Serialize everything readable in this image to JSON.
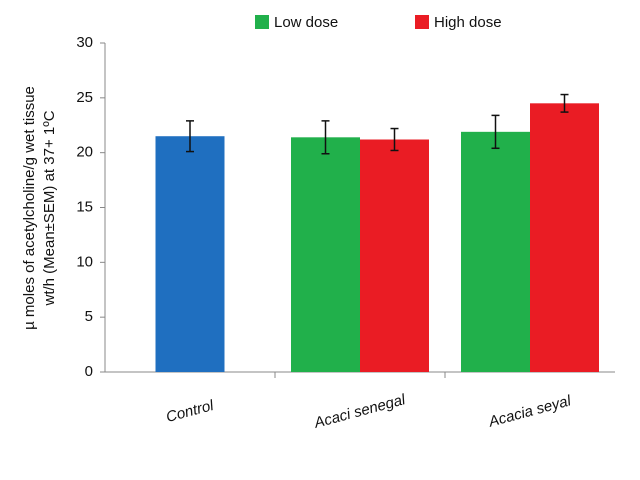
{
  "chart_data": {
    "type": "bar",
    "y_label_lines": [
      "µ moles of acetylcholine/g wet tissue",
      "wt/h (Mean±SEM) at 37+ 1ºC"
    ],
    "categories": [
      "Control",
      "Acaci senegal",
      "Acacia seyal"
    ],
    "series": [
      {
        "color": "#1f6fc0",
        "values": [
          21.5,
          null,
          null
        ],
        "errors": [
          1.4,
          null,
          null
        ]
      },
      {
        "name": "Low dose",
        "color": "#21b04b",
        "values": [
          null,
          21.4,
          21.9
        ],
        "errors": [
          null,
          1.5,
          1.5
        ]
      },
      {
        "name": "High dose",
        "color": "#ea1c24",
        "values": [
          null,
          21.2,
          24.5
        ],
        "errors": [
          null,
          1.0,
          0.8
        ]
      }
    ],
    "ylim": [
      0,
      30
    ],
    "yticks": [
      0,
      5,
      10,
      15,
      20,
      25,
      30
    ],
    "grid": false,
    "legend": "top"
  }
}
